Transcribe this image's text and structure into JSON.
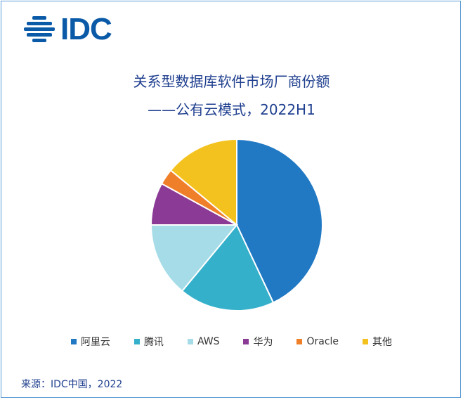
{
  "brand": {
    "logo_text": "IDC"
  },
  "chart_data": {
    "type": "pie",
    "title": "关系型数据库软件市场厂商份额",
    "subtitle": "——公有云模式，2022H1",
    "slices": [
      {
        "label": "阿里云",
        "value": 43,
        "color": "#2179c4"
      },
      {
        "label": "腾讯",
        "value": 18,
        "color": "#35b0cb"
      },
      {
        "label": "AWS",
        "value": 14,
        "color": "#a5dce7"
      },
      {
        "label": "华为",
        "value": 8,
        "color": "#8b3a96"
      },
      {
        "label": "Oracle",
        "value": 3,
        "color": "#f07f2a"
      },
      {
        "label": "其他",
        "value": 14,
        "color": "#f4c21f"
      }
    ],
    "legend_position": "bottom",
    "source": "来源：IDC中国，2022"
  }
}
